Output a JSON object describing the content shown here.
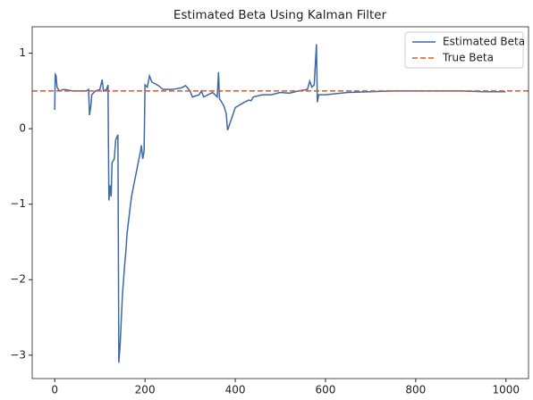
{
  "chart_data": {
    "type": "line",
    "title": "Estimated Beta Using Kalman Filter",
    "legend": "upper right",
    "xlim": [
      -50,
      1050
    ],
    "ylim": [
      -3.31,
      1.35
    ],
    "xticks": [
      0,
      200,
      400,
      600,
      800,
      1000
    ],
    "yticks": [
      {
        "value": -3,
        "label": "−3"
      },
      {
        "value": -2,
        "label": "−2"
      },
      {
        "value": -1,
        "label": "−1"
      },
      0,
      1
    ],
    "series": [
      {
        "name": "Estimated Beta",
        "color": "#3a6aa8",
        "x": [
          0,
          1,
          3,
          5,
          10,
          20,
          40,
          60,
          70,
          75,
          77,
          80,
          82,
          90,
          100,
          105,
          108,
          115,
          118,
          120,
          123,
          125,
          127,
          132,
          135,
          140,
          142,
          145,
          150,
          155,
          158,
          160,
          170,
          180,
          190,
          192,
          195,
          198,
          200,
          205,
          210,
          215,
          230,
          240,
          260,
          280,
          290,
          300,
          305,
          320,
          325,
          330,
          340,
          350,
          360,
          363,
          365,
          370,
          375,
          380,
          383,
          390,
          400,
          420,
          430,
          435,
          440,
          460,
          480,
          500,
          520,
          540,
          560,
          565,
          570,
          575,
          580,
          582,
          585,
          600,
          650,
          700,
          750,
          800,
          850,
          900,
          950,
          999
        ],
        "values": [
          0.25,
          0.72,
          0.7,
          0.55,
          0.5,
          0.52,
          0.5,
          0.5,
          0.5,
          0.52,
          0.18,
          0.3,
          0.45,
          0.5,
          0.52,
          0.65,
          0.5,
          0.52,
          0.58,
          -0.95,
          -0.75,
          -0.9,
          -0.45,
          -0.4,
          -0.15,
          -0.08,
          -3.1,
          -2.85,
          -2.2,
          -1.8,
          -1.6,
          -1.4,
          -0.9,
          -0.6,
          -0.3,
          -0.22,
          -0.4,
          -0.3,
          0.58,
          0.55,
          0.7,
          0.62,
          0.57,
          0.52,
          0.52,
          0.54,
          0.57,
          0.5,
          0.42,
          0.45,
          0.5,
          0.42,
          0.45,
          0.48,
          0.42,
          0.75,
          0.4,
          0.35,
          0.3,
          0.2,
          -0.02,
          0.1,
          0.28,
          0.35,
          0.38,
          0.37,
          0.42,
          0.45,
          0.45,
          0.48,
          0.47,
          0.5,
          0.52,
          0.63,
          0.55,
          0.58,
          1.12,
          0.35,
          0.45,
          0.45,
          0.48,
          0.49,
          0.5,
          0.5,
          0.5,
          0.5,
          0.49,
          0.49
        ]
      },
      {
        "name": "True Beta",
        "color": "#e0552b",
        "style": "dashed",
        "y": 0.5
      }
    ]
  }
}
